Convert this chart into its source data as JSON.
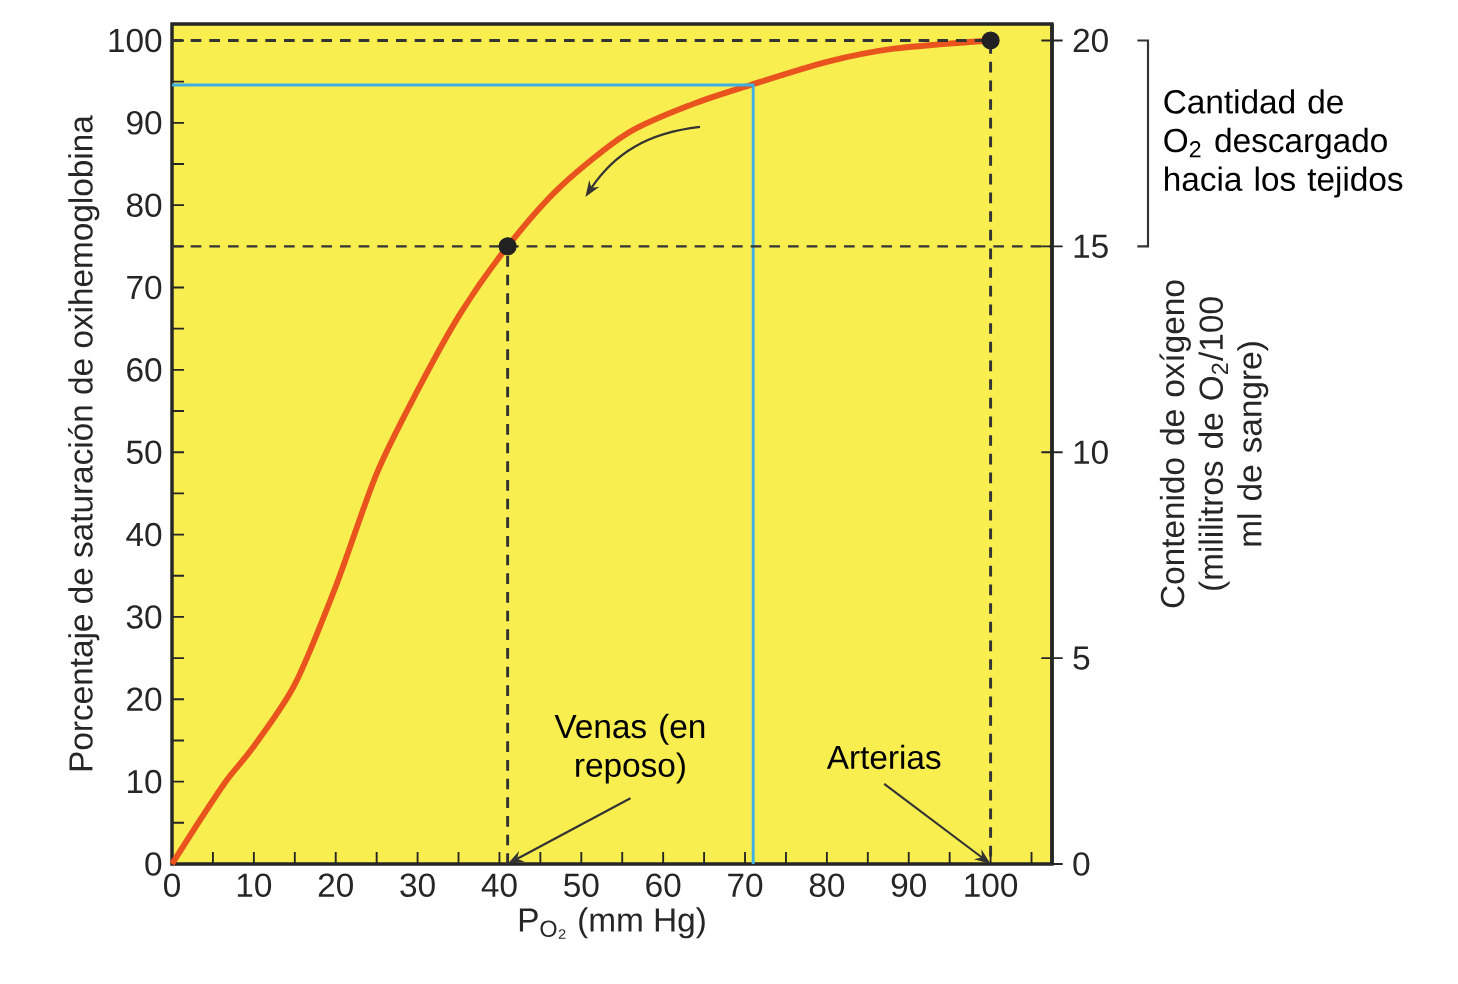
{
  "chart_data": {
    "type": "line",
    "xlabel": "P$_{O₂}$ (mm Hg)",
    "ylabel": "Porcentaje de saturación de oxihemoglobina",
    "y2label": "Contenido de oxígeno (mililitros de O$_{2}$/100 ml de sangre)",
    "xlim": [
      0,
      107.5
    ],
    "ylim": [
      0,
      102
    ],
    "y2lim": [
      0,
      20.4
    ],
    "xticks": [
      0,
      {
        "value": 5,
        "label": null
      },
      10,
      {
        "value": 15,
        "label": null
      },
      20,
      {
        "value": 25,
        "label": null
      },
      30,
      {
        "value": 35,
        "label": null
      },
      40,
      {
        "value": 45,
        "label": null
      },
      50,
      {
        "value": 55,
        "label": null
      },
      60,
      {
        "value": 65,
        "label": null
      },
      70,
      {
        "value": 75,
        "label": null
      },
      80,
      {
        "value": 85,
        "label": null
      },
      90,
      {
        "value": 95,
        "label": null
      },
      100,
      {
        "value": 105,
        "label": null
      }
    ],
    "yticks": [
      0,
      {
        "value": 5,
        "label": null
      },
      10,
      {
        "value": 15,
        "label": null
      },
      20,
      {
        "value": 25,
        "label": null
      },
      30,
      {
        "value": 35,
        "label": null
      },
      40,
      {
        "value": 45,
        "label": null
      },
      50,
      {
        "value": 55,
        "label": null
      },
      60,
      {
        "value": 65,
        "label": null
      },
      70,
      {
        "value": 75,
        "label": null
      },
      80,
      {
        "value": 85,
        "label": null
      },
      90,
      {
        "value": 95,
        "label": null
      },
      100
    ],
    "y2ticks": [
      0,
      5,
      10,
      15,
      20
    ],
    "series": [
      {
        "color": "#e8531e",
        "x": [
          0,
          3.4,
          6.7,
          10,
          15,
          20,
          25,
          30,
          35.2,
          41,
          47.4,
          55.6,
          63.7,
          70.7,
          80,
          88.2,
          100
        ],
        "values": [
          0,
          5.3,
          10.2,
          14.3,
          21.8,
          33.7,
          47.4,
          57.5,
          66.8,
          75,
          82.2,
          88.7,
          92.3,
          94.6,
          97.4,
          99,
          100
        ]
      },
      {
        "type": "line",
        "color": "#3fb0e0",
        "x": [
          0,
          71,
          71
        ],
        "values": [
          94.6,
          94.6,
          0
        ]
      },
      {
        "type": "line",
        "color": "#333333",
        "line_style": "dashed",
        "x": [
          0,
          100,
          100
        ],
        "values": [
          100,
          100,
          0
        ]
      },
      {
        "type": "line",
        "color": "#333333",
        "line_style": "dashed",
        "x": [
          41,
          41
        ],
        "values": [
          0,
          75
        ]
      },
      {
        "type": "scatter",
        "color": "#222222",
        "x": [
          41,
          100
        ],
        "values": [
          75,
          100
        ]
      }
    ],
    "ref_lines": [
      {
        "axis": "y",
        "value": 75,
        "color": "#333333",
        "line_style": "dashed"
      }
    ],
    "annotations": [
      "Cantidad de O$_{2}$ descargado hacia los tejidos",
      {
        "text": "Venas (en reposo)",
        "x": 41,
        "y": 0
      },
      {
        "text": "Arterias",
        "x": 100,
        "y": 0
      }
    ]
  }
}
